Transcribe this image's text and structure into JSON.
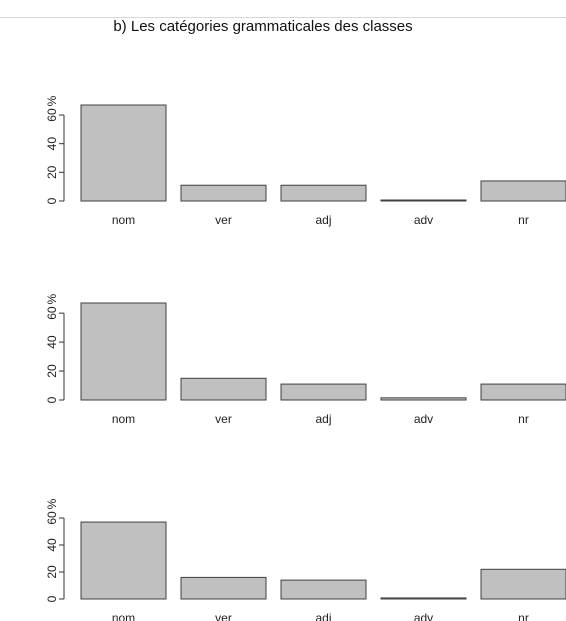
{
  "figure": {
    "title": "b) Les catégories grammaticales des classes"
  },
  "colors": {
    "bar_fill": "#c0c0c0",
    "bar_stroke": "#404040",
    "axis": "#333333",
    "text": "#222222"
  },
  "chart_data": [
    {
      "type": "bar",
      "categories": [
        "nom",
        "ver",
        "adj",
        "adv",
        "nr"
      ],
      "values": [
        67,
        11,
        11,
        0.5,
        14
      ],
      "ylabel": "%",
      "ylim": [
        0,
        67
      ],
      "yticks": [
        0,
        20,
        40,
        60
      ],
      "grid": false
    },
    {
      "type": "bar",
      "categories": [
        "nom",
        "ver",
        "adj",
        "adv",
        "nr"
      ],
      "values": [
        67,
        15,
        11,
        1.5,
        11
      ],
      "ylabel": "%",
      "ylim": [
        0,
        67
      ],
      "yticks": [
        0,
        20,
        40,
        60
      ],
      "grid": false
    },
    {
      "type": "bar",
      "categories": [
        "nom",
        "ver",
        "adj",
        "adv",
        "nr"
      ],
      "values": [
        57,
        16,
        14,
        0.8,
        22
      ],
      "ylabel": "%",
      "ylim": [
        0,
        60
      ],
      "yticks": [
        0,
        20,
        40,
        60
      ],
      "grid": false
    }
  ]
}
